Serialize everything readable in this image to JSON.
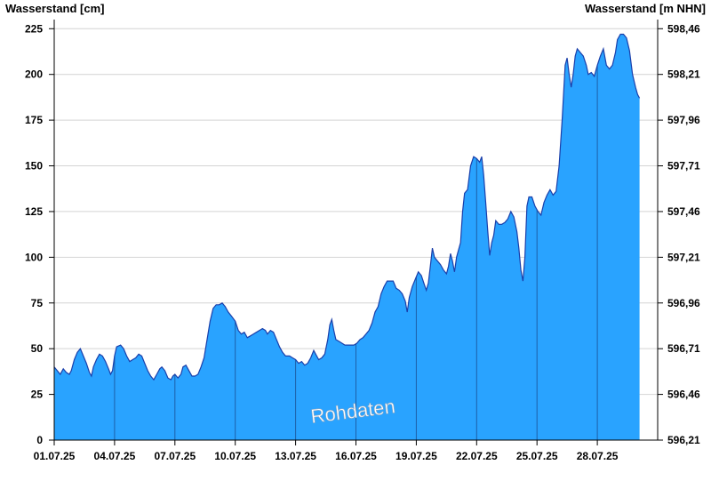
{
  "chart_data": {
    "type": "area",
    "ylabel": "Wasserstand [cm]",
    "ylabel_right": "Wasserstand [m NHN]",
    "watermark": "Rohdaten",
    "ylim": [
      0,
      230
    ],
    "y_ticks": [
      0,
      25,
      50,
      75,
      100,
      125,
      150,
      175,
      200,
      225
    ],
    "y2_ticks": [
      "596,21",
      "596,46",
      "596,71",
      "596,96",
      "597,21",
      "597,46",
      "597,71",
      "597,96",
      "598,21",
      "598,46"
    ],
    "xlim": [
      0,
      30
    ],
    "x_ticks": [
      {
        "x": 0,
        "label": "01.07.25"
      },
      {
        "x": 3,
        "label": "04.07.25"
      },
      {
        "x": 6,
        "label": "07.07.25"
      },
      {
        "x": 9,
        "label": "10.07.25"
      },
      {
        "x": 12,
        "label": "13.07.25"
      },
      {
        "x": 15,
        "label": "16.07.25"
      },
      {
        "x": 18,
        "label": "19.07.25"
      },
      {
        "x": 21,
        "label": "22.07.25"
      },
      {
        "x": 24,
        "label": "25.07.25"
      },
      {
        "x": 27,
        "label": "28.07.25"
      }
    ],
    "colors": {
      "fill": "#29a3ff",
      "line": "#1a3faa",
      "grid": "#d4d4d4",
      "divider": "#1d5fa8"
    },
    "points": [
      [
        0,
        40
      ],
      [
        0.15,
        38
      ],
      [
        0.3,
        36
      ],
      [
        0.45,
        39
      ],
      [
        0.6,
        37
      ],
      [
        0.75,
        36
      ],
      [
        0.85,
        38
      ],
      [
        1.0,
        44
      ],
      [
        1.15,
        48
      ],
      [
        1.3,
        50
      ],
      [
        1.45,
        46
      ],
      [
        1.6,
        42
      ],
      [
        1.75,
        37
      ],
      [
        1.85,
        35
      ],
      [
        1.95,
        40
      ],
      [
        2.1,
        44
      ],
      [
        2.25,
        47
      ],
      [
        2.4,
        46
      ],
      [
        2.55,
        43
      ],
      [
        2.7,
        39
      ],
      [
        2.8,
        36
      ],
      [
        2.9,
        38
      ],
      [
        3.0,
        46
      ],
      [
        3.1,
        51
      ],
      [
        3.3,
        52
      ],
      [
        3.45,
        50
      ],
      [
        3.6,
        46
      ],
      [
        3.75,
        43
      ],
      [
        3.9,
        44
      ],
      [
        4.05,
        45
      ],
      [
        4.2,
        47
      ],
      [
        4.35,
        46
      ],
      [
        4.5,
        42
      ],
      [
        4.65,
        38
      ],
      [
        4.8,
        35
      ],
      [
        4.95,
        33
      ],
      [
        5.1,
        36
      ],
      [
        5.25,
        39
      ],
      [
        5.35,
        40
      ],
      [
        5.5,
        38
      ],
      [
        5.65,
        34
      ],
      [
        5.8,
        33
      ],
      [
        5.9,
        35
      ],
      [
        6.0,
        36
      ],
      [
        6.15,
        34
      ],
      [
        6.3,
        36
      ],
      [
        6.4,
        40
      ],
      [
        6.55,
        41
      ],
      [
        6.7,
        38
      ],
      [
        6.85,
        35
      ],
      [
        7.0,
        35
      ],
      [
        7.15,
        36
      ],
      [
        7.3,
        40
      ],
      [
        7.45,
        45
      ],
      [
        7.6,
        55
      ],
      [
        7.75,
        65
      ],
      [
        7.9,
        72
      ],
      [
        8.05,
        74
      ],
      [
        8.2,
        74
      ],
      [
        8.35,
        75
      ],
      [
        8.5,
        73
      ],
      [
        8.65,
        70
      ],
      [
        8.8,
        68
      ],
      [
        9.0,
        65
      ],
      [
        9.15,
        60
      ],
      [
        9.3,
        58
      ],
      [
        9.45,
        59
      ],
      [
        9.6,
        56
      ],
      [
        9.75,
        57
      ],
      [
        9.9,
        58
      ],
      [
        10.05,
        59
      ],
      [
        10.2,
        60
      ],
      [
        10.35,
        61
      ],
      [
        10.5,
        60
      ],
      [
        10.6,
        58
      ],
      [
        10.75,
        60
      ],
      [
        10.9,
        59
      ],
      [
        11.05,
        55
      ],
      [
        11.2,
        51
      ],
      [
        11.35,
        48
      ],
      [
        11.5,
        46
      ],
      [
        11.7,
        46
      ],
      [
        11.85,
        45
      ],
      [
        12.0,
        44
      ],
      [
        12.15,
        42
      ],
      [
        12.3,
        43
      ],
      [
        12.45,
        41
      ],
      [
        12.6,
        42
      ],
      [
        12.75,
        45
      ],
      [
        12.9,
        49
      ],
      [
        13.0,
        47
      ],
      [
        13.15,
        44
      ],
      [
        13.3,
        45
      ],
      [
        13.45,
        47
      ],
      [
        13.6,
        55
      ],
      [
        13.7,
        63
      ],
      [
        13.8,
        66
      ],
      [
        13.9,
        60
      ],
      [
        14.0,
        55
      ],
      [
        14.15,
        54
      ],
      [
        14.3,
        53
      ],
      [
        14.45,
        52
      ],
      [
        14.6,
        52
      ],
      [
        14.75,
        52
      ],
      [
        14.9,
        52
      ],
      [
        15.05,
        53
      ],
      [
        15.2,
        55
      ],
      [
        15.35,
        56
      ],
      [
        15.5,
        58
      ],
      [
        15.65,
        60
      ],
      [
        15.8,
        64
      ],
      [
        15.95,
        70
      ],
      [
        16.1,
        73
      ],
      [
        16.25,
        80
      ],
      [
        16.4,
        84
      ],
      [
        16.55,
        87
      ],
      [
        16.7,
        87
      ],
      [
        16.85,
        87
      ],
      [
        17.0,
        83
      ],
      [
        17.15,
        82
      ],
      [
        17.3,
        80
      ],
      [
        17.45,
        76
      ],
      [
        17.55,
        70
      ],
      [
        17.65,
        78
      ],
      [
        17.8,
        84
      ],
      [
        17.95,
        88
      ],
      [
        18.1,
        92
      ],
      [
        18.25,
        90
      ],
      [
        18.4,
        85
      ],
      [
        18.5,
        82
      ],
      [
        18.6,
        86
      ],
      [
        18.7,
        95
      ],
      [
        18.8,
        105
      ],
      [
        18.9,
        100
      ],
      [
        19.05,
        98
      ],
      [
        19.2,
        96
      ],
      [
        19.35,
        93
      ],
      [
        19.5,
        91
      ],
      [
        19.6,
        95
      ],
      [
        19.7,
        102
      ],
      [
        19.8,
        98
      ],
      [
        19.9,
        92
      ],
      [
        20.0,
        100
      ],
      [
        20.1,
        104
      ],
      [
        20.2,
        108
      ],
      [
        20.3,
        125
      ],
      [
        20.4,
        135
      ],
      [
        20.55,
        137
      ],
      [
        20.7,
        150
      ],
      [
        20.85,
        155
      ],
      [
        21.0,
        154
      ],
      [
        21.15,
        152
      ],
      [
        21.25,
        155
      ],
      [
        21.35,
        145
      ],
      [
        21.45,
        130
      ],
      [
        21.55,
        115
      ],
      [
        21.65,
        101
      ],
      [
        21.75,
        108
      ],
      [
        21.85,
        112
      ],
      [
        21.95,
        120
      ],
      [
        22.1,
        118
      ],
      [
        22.25,
        118
      ],
      [
        22.4,
        119
      ],
      [
        22.55,
        121
      ],
      [
        22.7,
        125
      ],
      [
        22.85,
        122
      ],
      [
        23.0,
        114
      ],
      [
        23.1,
        105
      ],
      [
        23.2,
        93
      ],
      [
        23.3,
        87
      ],
      [
        23.4,
        100
      ],
      [
        23.5,
        128
      ],
      [
        23.6,
        133
      ],
      [
        23.75,
        133
      ],
      [
        23.9,
        128
      ],
      [
        24.05,
        125
      ],
      [
        24.2,
        123
      ],
      [
        24.35,
        130
      ],
      [
        24.5,
        134
      ],
      [
        24.65,
        137
      ],
      [
        24.8,
        134
      ],
      [
        24.95,
        136
      ],
      [
        25.1,
        150
      ],
      [
        25.25,
        175
      ],
      [
        25.4,
        205
      ],
      [
        25.5,
        209
      ],
      [
        25.6,
        200
      ],
      [
        25.7,
        193
      ],
      [
        25.8,
        200
      ],
      [
        25.9,
        210
      ],
      [
        26.0,
        214
      ],
      [
        26.15,
        212
      ],
      [
        26.3,
        210
      ],
      [
        26.45,
        205
      ],
      [
        26.55,
        200
      ],
      [
        26.7,
        201
      ],
      [
        26.85,
        199
      ],
      [
        27.0,
        205
      ],
      [
        27.15,
        210
      ],
      [
        27.3,
        214
      ],
      [
        27.45,
        205
      ],
      [
        27.6,
        203
      ],
      [
        27.75,
        205
      ],
      [
        27.9,
        212
      ],
      [
        28.0,
        219
      ],
      [
        28.15,
        222
      ],
      [
        28.3,
        222
      ],
      [
        28.45,
        220
      ],
      [
        28.6,
        213
      ],
      [
        28.75,
        200
      ],
      [
        28.9,
        193
      ],
      [
        29.0,
        189
      ],
      [
        29.1,
        187
      ]
    ],
    "dividers_at": [
      3,
      6,
      9,
      12,
      15,
      18,
      21,
      24,
      27
    ]
  }
}
